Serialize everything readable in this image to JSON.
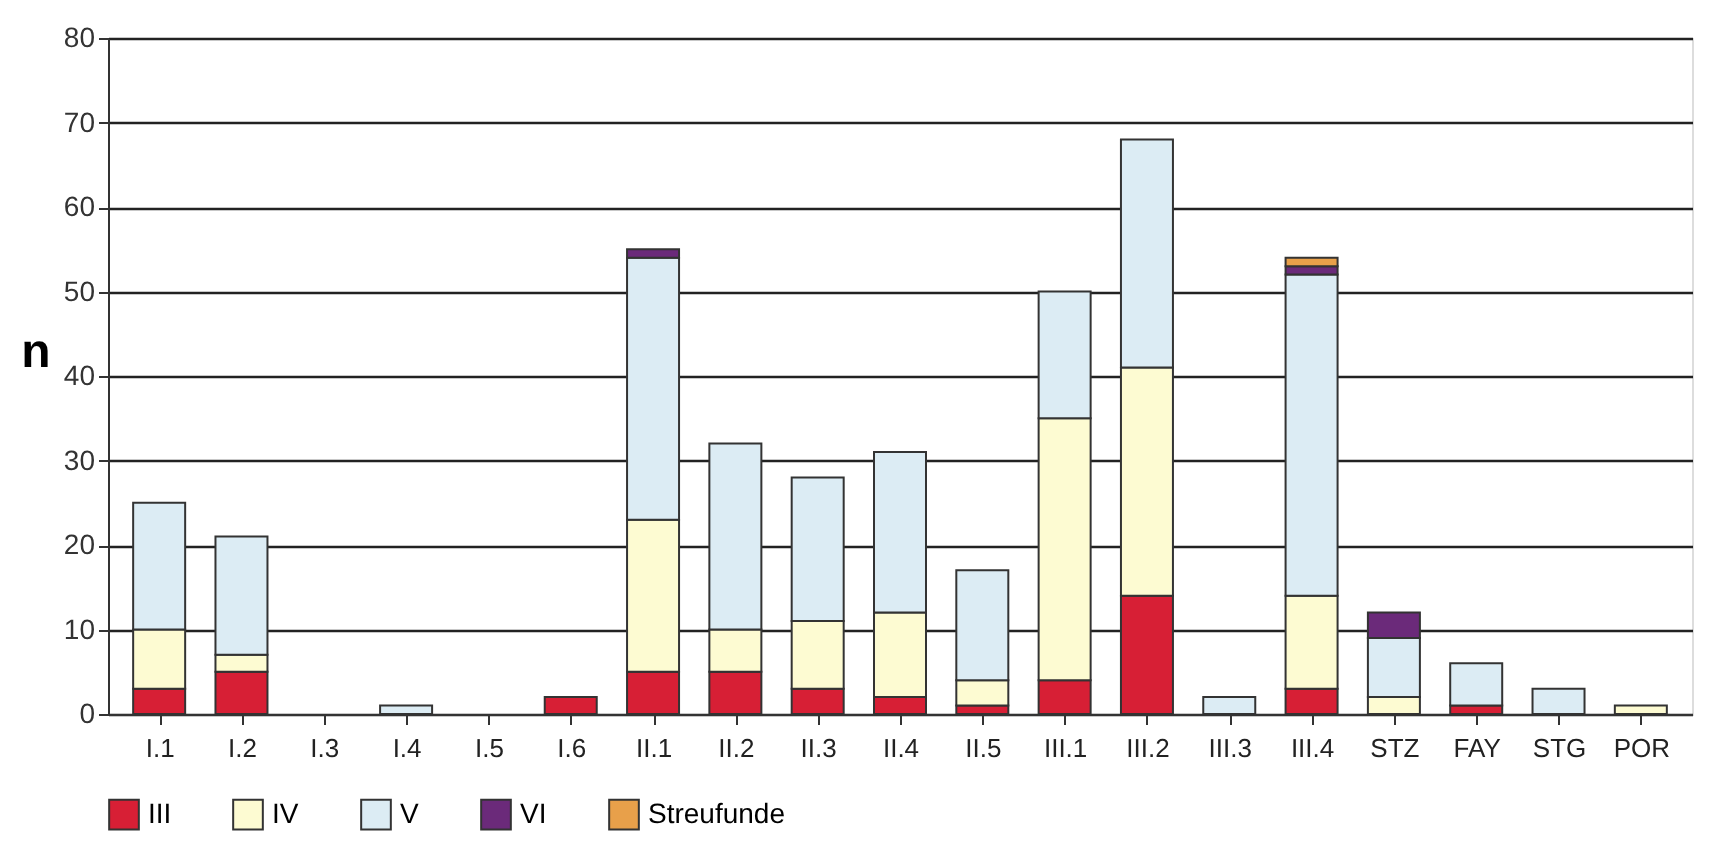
{
  "chart_data": {
    "type": "bar",
    "stacked": true,
    "ylabel": "n",
    "categories": [
      "I.1",
      "I.2",
      "I.3",
      "I.4",
      "I.5",
      "I.6",
      "II.1",
      "II.2",
      "II.3",
      "II.4",
      "II.5",
      "III.1",
      "III.2",
      "III.3",
      "III.4",
      "STZ",
      "FAY",
      "STG",
      "POR"
    ],
    "series": [
      {
        "name": "III",
        "color": "#d71f35",
        "values": [
          3,
          5,
          0,
          0,
          0,
          2,
          5,
          5,
          3,
          2,
          1,
          4,
          14,
          0,
          3,
          0,
          1,
          0,
          0
        ]
      },
      {
        "name": "IV",
        "color": "#fdfbd2",
        "values": [
          7,
          2,
          0,
          0,
          0,
          0,
          18,
          5,
          8,
          10,
          3,
          31,
          27,
          0,
          11,
          2,
          0,
          0,
          1
        ]
      },
      {
        "name": "V",
        "color": "#dcecf4",
        "values": [
          15,
          14,
          0,
          1,
          0,
          0,
          31,
          22,
          17,
          19,
          13,
          15,
          27,
          2,
          38,
          7,
          5,
          3,
          0
        ]
      },
      {
        "name": "VI",
        "color": "#6b2a7a",
        "values": [
          0,
          0,
          0,
          0,
          0,
          0,
          1,
          0,
          0,
          0,
          0,
          0,
          0,
          0,
          1,
          3,
          0,
          0,
          0
        ]
      },
      {
        "name": "Streufunde",
        "color": "#e8a04a",
        "values": [
          0,
          0,
          0,
          0,
          0,
          0,
          0,
          0,
          0,
          0,
          0,
          0,
          0,
          0,
          1,
          0,
          0,
          0,
          0
        ]
      }
    ],
    "ylim": [
      0,
      80
    ],
    "yticks": [
      0,
      10,
      20,
      30,
      40,
      50,
      60,
      70,
      80
    ],
    "grid": "y",
    "legend": "bottom left"
  }
}
